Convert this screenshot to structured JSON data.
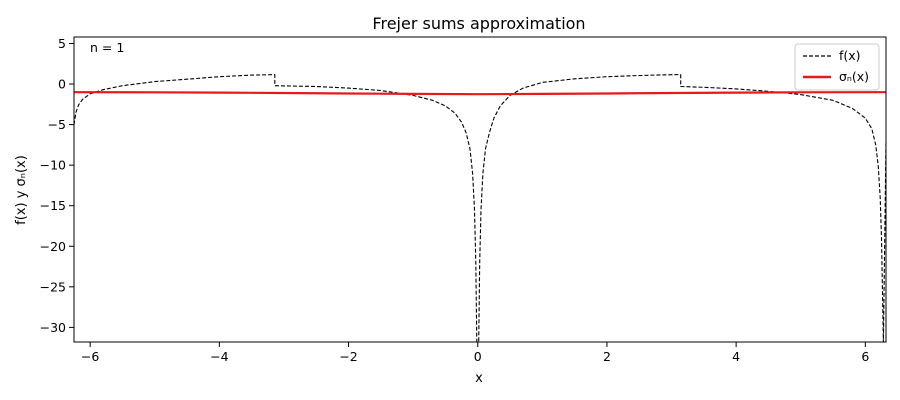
{
  "chart_data": {
    "type": "line",
    "title": "Frejer sums approximation",
    "xlabel": "x",
    "ylabel": "f(x) y σₙ(x)",
    "annotation": "n = 1",
    "xlim": [
      -6.25,
      6.32
    ],
    "ylim": [
      -31.8,
      5.8
    ],
    "xticks": [
      -6,
      -4,
      -2,
      0,
      2,
      4,
      6
    ],
    "yticks": [
      5,
      0,
      -5,
      -10,
      -15,
      -20,
      -25,
      -30
    ],
    "xtick_labels": [
      "−6",
      "−4",
      "−2",
      "0",
      "2",
      "4",
      "6"
    ],
    "ytick_labels": [
      "5",
      "0",
      "−5",
      "−10",
      "−15",
      "−20",
      "−25",
      "−30"
    ],
    "grid": false,
    "legend_position": "top-right",
    "series": [
      {
        "name": "f(x)",
        "style": "dashed",
        "color": "#000000",
        "x": [
          -6.25,
          -6.22,
          -6.18,
          -6.12,
          -6.0,
          -5.8,
          -5.5,
          -5.0,
          -4.5,
          -4.0,
          -3.5,
          -3.2,
          -3.14159,
          -3.14158,
          -2.5,
          -2.0,
          -1.5,
          -1.0,
          -0.7,
          -0.5,
          -0.35,
          -0.25,
          -0.18,
          -0.12,
          -0.08,
          -0.05,
          -0.03,
          -0.015,
          0.015,
          0.03,
          0.05,
          0.08,
          0.12,
          0.18,
          0.25,
          0.35,
          0.5,
          0.7,
          1.0,
          1.5,
          2.0,
          2.5,
          3.0,
          3.14158,
          3.14159,
          3.5,
          4.0,
          4.5,
          5.0,
          5.5,
          5.8,
          6.0,
          6.1,
          6.16,
          6.2,
          6.23,
          6.25,
          6.265,
          6.28,
          6.32
        ],
        "y": [
          -5.0,
          -3.5,
          -2.6,
          -1.9,
          -1.2,
          -0.7,
          -0.2,
          0.3,
          0.6,
          0.9,
          1.1,
          1.15,
          1.16,
          -0.2,
          -0.3,
          -0.5,
          -0.8,
          -1.4,
          -2.0,
          -2.7,
          -3.6,
          -4.7,
          -6.0,
          -8.0,
          -11.0,
          -15.5,
          -22.0,
          -31.8,
          -31.8,
          -22.0,
          -15.5,
          -11.0,
          -8.0,
          -6.0,
          -4.2,
          -2.7,
          -1.4,
          -0.5,
          0.2,
          0.65,
          0.9,
          1.05,
          1.15,
          1.16,
          -0.3,
          -0.4,
          -0.6,
          -0.9,
          -1.3,
          -2.0,
          -3.0,
          -4.2,
          -5.5,
          -7.5,
          -10.0,
          -14.0,
          -19.0,
          -25.0,
          -31.8,
          -7.0
        ]
      },
      {
        "name": "σₙ(x)",
        "style": "solid",
        "color": "#e41a1c",
        "x": [
          -6.25,
          -5.0,
          -4.0,
          -3.0,
          -2.0,
          -1.0,
          0.0,
          1.0,
          2.0,
          3.0,
          4.0,
          5.0,
          6.0,
          6.32
        ],
        "y": [
          -1.0,
          -1.02,
          -1.05,
          -1.1,
          -1.16,
          -1.22,
          -1.25,
          -1.22,
          -1.16,
          -1.1,
          -1.05,
          -1.02,
          -1.0,
          -1.0
        ]
      }
    ]
  }
}
